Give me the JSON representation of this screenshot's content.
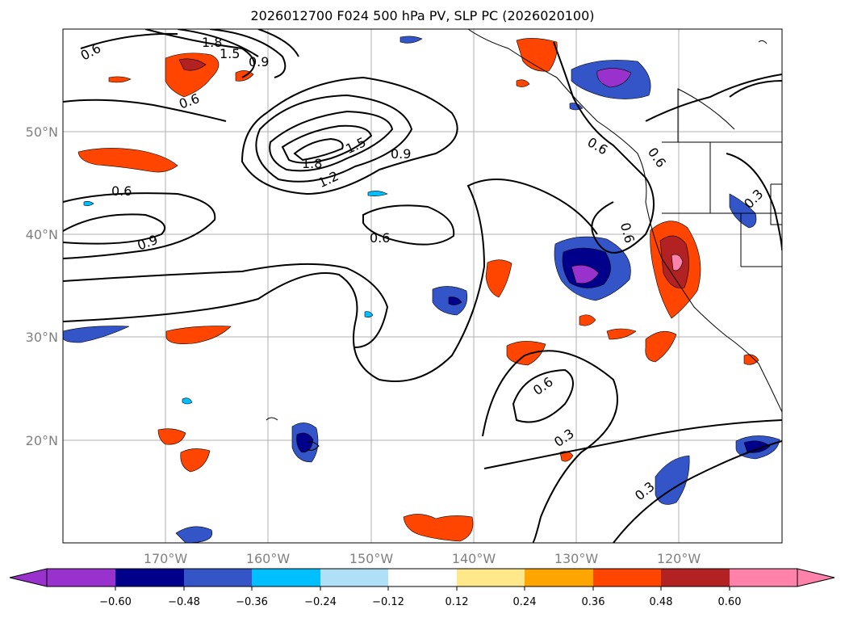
{
  "title": "2026012700 F024 500 hPa PV, SLP PC (2026020100)",
  "lat_labels": [
    "50°N",
    "40°N",
    "30°N",
    "20°N"
  ],
  "lon_labels": [
    "170°W",
    "160°W",
    "150°W",
    "140°W",
    "130°W",
    "120°W"
  ],
  "contour_labels": [
    "0.6",
    "1.8",
    "1.5",
    "0.9",
    "0.6",
    "1.8",
    "1.5",
    "1.2",
    "0.9",
    "0.6",
    "0.6",
    "0.9",
    "0.6",
    "0.6",
    "0.3",
    "0.6",
    "0.3",
    "0.3",
    "0.6"
  ],
  "colorbar": {
    "ticks": [
      "−0.60",
      "−0.48",
      "−0.36",
      "−0.24",
      "−0.12",
      "0.12",
      "0.24",
      "0.36",
      "0.48",
      "0.60"
    ],
    "colors": [
      "#9932cc",
      "#00008b",
      "#3455c8",
      "#00bfff",
      "#b0e0f8",
      "#ffffff",
      "#ffe88a",
      "#ffa500",
      "#ff4500",
      "#b22222",
      "#ff82ab"
    ]
  }
}
